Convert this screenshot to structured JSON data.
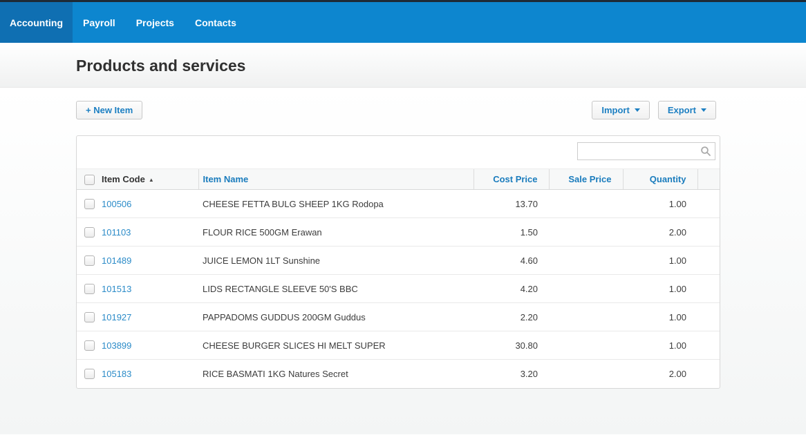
{
  "nav": {
    "tabs": [
      {
        "label": "Accounting",
        "active": true
      },
      {
        "label": "Payroll",
        "active": false
      },
      {
        "label": "Projects",
        "active": false
      },
      {
        "label": "Contacts",
        "active": false
      }
    ]
  },
  "page": {
    "title": "Products and services"
  },
  "toolbar": {
    "new_item_label": "+ New Item",
    "import_label": "Import",
    "export_label": "Export"
  },
  "search": {
    "value": "",
    "placeholder": "",
    "icon": "search-icon"
  },
  "table": {
    "columns": [
      "Item Code",
      "Item Name",
      "Cost Price",
      "Sale Price",
      "Quantity"
    ],
    "sort": {
      "column": "Item Code",
      "direction": "asc",
      "arrow": "▲"
    },
    "rows": [
      {
        "code": "100506",
        "name": "CHEESE FETTA BULG SHEEP 1KG Rodopa",
        "cost": "13.70",
        "sale": "",
        "qty": "1.00"
      },
      {
        "code": "101103",
        "name": "FLOUR RICE 500GM Erawan",
        "cost": "1.50",
        "sale": "",
        "qty": "2.00"
      },
      {
        "code": "101489",
        "name": "JUICE LEMON 1LT Sunshine",
        "cost": "4.60",
        "sale": "",
        "qty": "1.00"
      },
      {
        "code": "101513",
        "name": "LIDS RECTANGLE SLEEVE 50'S BBC",
        "cost": "4.20",
        "sale": "",
        "qty": "1.00"
      },
      {
        "code": "101927",
        "name": "PAPPADOMS GUDDUS 200GM Guddus",
        "cost": "2.20",
        "sale": "",
        "qty": "1.00"
      },
      {
        "code": "103899",
        "name": "CHEESE BURGER SLICES HI MELT SUPER",
        "cost": "30.80",
        "sale": "",
        "qty": "1.00"
      },
      {
        "code": "105183",
        "name": "RICE BASMATI 1KG Natures Secret",
        "cost": "3.20",
        "sale": "",
        "qty": "2.00"
      }
    ]
  },
  "colors": {
    "nav_bar": "#0d86cf",
    "nav_active_tab": "#0f6fb2",
    "top_strip": "#1e2a36",
    "accent_blue": "#1c7fc2",
    "link_blue": "#2b8bc8",
    "header_text_blue": "#1a7cbd",
    "body_text": "#3c3c3c"
  }
}
